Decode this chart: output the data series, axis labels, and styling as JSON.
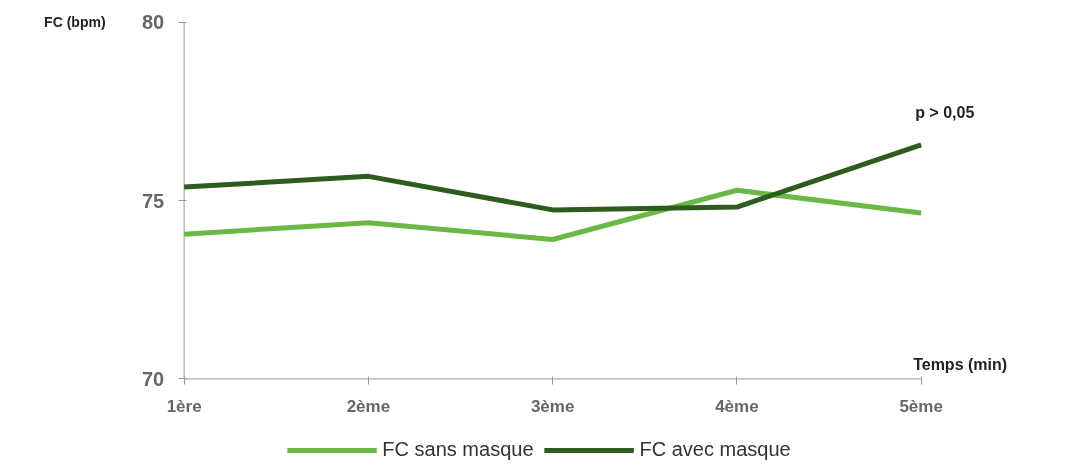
{
  "chart_data": {
    "type": "line",
    "ylabel": "FC (bpm)",
    "xlabel": "Temps (min)",
    "categories": [
      "1ère",
      "2ème",
      "3ème",
      "4ème",
      "5ème"
    ],
    "series": [
      {
        "name": "FC sans masque",
        "color": "#6cb846",
        "values": [
          74.06,
          74.38,
          73.91,
          75.29,
          74.65
        ]
      },
      {
        "name": "FC avec masque",
        "color": "#2e5c1f",
        "values": [
          75.38,
          75.68,
          74.74,
          74.82,
          76.56
        ]
      }
    ],
    "ylim": [
      70,
      80
    ],
    "yticks": [
      70,
      75,
      80
    ],
    "annotations": [
      "p > 0,05"
    ],
    "legend": "bottom"
  }
}
